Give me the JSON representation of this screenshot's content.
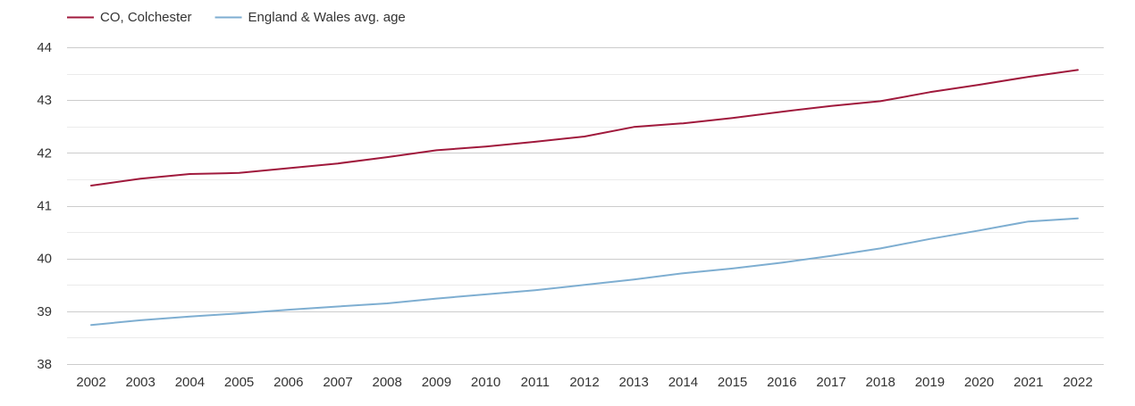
{
  "chart_data": {
    "type": "line",
    "x": [
      "2002",
      "2003",
      "2004",
      "2005",
      "2006",
      "2007",
      "2008",
      "2009",
      "2010",
      "2011",
      "2012",
      "2013",
      "2014",
      "2015",
      "2016",
      "2017",
      "2018",
      "2019",
      "2020",
      "2021",
      "2022"
    ],
    "ylim": [
      38,
      44
    ],
    "yticks": [
      38,
      39,
      40,
      41,
      42,
      43,
      44
    ],
    "grid": true,
    "legend_position": "top-left",
    "series": [
      {
        "name": "CO, Colchester",
        "color": "#a0193c",
        "values": [
          41.38,
          41.51,
          41.6,
          41.62,
          41.71,
          41.8,
          41.92,
          42.05,
          42.12,
          42.21,
          42.31,
          42.49,
          42.56,
          42.66,
          42.78,
          42.89,
          42.98,
          43.15,
          43.29,
          43.44,
          43.57
        ]
      },
      {
        "name": "England & Wales avg. age",
        "color": "#7eaed1",
        "values": [
          38.74,
          38.83,
          38.9,
          38.96,
          39.03,
          39.09,
          39.15,
          39.24,
          39.32,
          39.4,
          39.5,
          39.6,
          39.72,
          39.81,
          39.92,
          40.05,
          40.19,
          40.37,
          40.53,
          40.7,
          40.76
        ]
      }
    ]
  }
}
